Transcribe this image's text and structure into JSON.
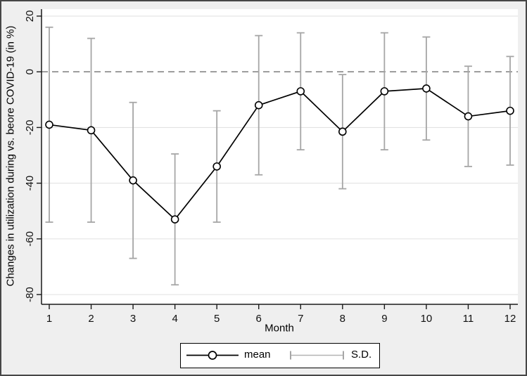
{
  "colors": {
    "figure_background": "#efefef",
    "plot_background": "#ffffff",
    "grid": "#e2e2e2",
    "zero_line": "#8f8f8f",
    "error_bar": "#a6a6a6",
    "mean_line": "#000000",
    "marker_fill": "#ffffff",
    "axis": "#1a1a1a",
    "outer_border": "#474747"
  },
  "chart_data": {
    "type": "line",
    "title": "",
    "xlabel": "Month",
    "ylabel": "Changes in utilization during vs. beore COVID-19 (in %)",
    "x": [
      1,
      2,
      3,
      4,
      5,
      6,
      7,
      8,
      9,
      10,
      11,
      12
    ],
    "series": [
      {
        "name": "mean",
        "type": "line_with_markers",
        "values": [
          -19,
          -21,
          -39,
          -53,
          -34,
          -12,
          -7,
          -21.5,
          -7,
          -6,
          -16,
          -14
        ]
      },
      {
        "name": "S.D.",
        "type": "errorbar",
        "sd": [
          35,
          33,
          28,
          23.5,
          20,
          25,
          21,
          20.5,
          21,
          18.5,
          18,
          19.5
        ]
      }
    ],
    "yticks": [
      20,
      0,
      -20,
      -40,
      -60,
      -80
    ],
    "ylim": [
      -83.5,
      22.5
    ],
    "zero_reference_line": 0,
    "grid": "horizontal",
    "legend": {
      "position": "bottom",
      "entries": [
        "mean",
        "S.D."
      ]
    }
  }
}
